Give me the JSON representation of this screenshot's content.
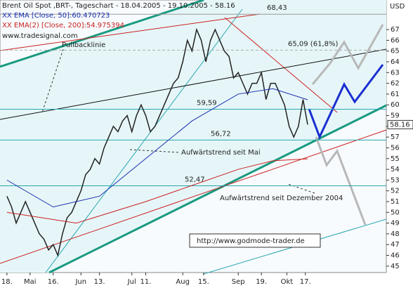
{
  "chart_data": {
    "type": "line",
    "title": "Brent Oil Spot ,BRT-, Tageschart - 18.04.2005 - 19.10.2005 - 58.16",
    "source": "www.tradesignal.com",
    "axis_unit": "USD",
    "watermark": "http://www.godmode-trader.de",
    "xlim": [
      -3,
      164
    ],
    "ylim": [
      44.4,
      69.75
    ],
    "yticks": [
      45,
      46,
      47,
      48,
      49,
      50,
      51,
      52,
      53,
      54,
      55,
      56,
      57,
      58,
      59,
      60,
      61,
      62,
      63,
      64,
      65,
      66,
      67
    ],
    "xticks": [
      {
        "value": 0,
        "label": "18."
      },
      {
        "value": 10,
        "label": "Mai"
      },
      {
        "value": 20,
        "label": "16."
      },
      {
        "value": 32,
        "label": "Jun"
      },
      {
        "value": 40,
        "label": "13."
      },
      {
        "value": 54,
        "label": "Jul"
      },
      {
        "value": 60,
        "label": "11."
      },
      {
        "value": 76,
        "label": "Aug"
      },
      {
        "value": 85,
        "label": "15."
      },
      {
        "value": 100,
        "label": "Sep"
      },
      {
        "value": 110,
        "label": "19."
      },
      {
        "value": 121,
        "label": "Okt"
      },
      {
        "value": 129,
        "label": "17."
      }
    ],
    "last": 58.16,
    "series": [
      {
        "name": "Brent Oil Spot",
        "color": "#222222",
        "x": [
          0,
          2,
          4,
          6,
          8,
          10,
          12,
          14,
          16,
          18,
          20,
          22,
          24,
          26,
          28,
          30,
          32,
          34,
          36,
          38,
          40,
          42,
          44,
          46,
          48,
          50,
          52,
          54,
          56,
          58,
          60,
          62,
          64,
          66,
          68,
          70,
          72,
          74,
          76,
          78,
          80,
          82,
          84,
          86,
          88,
          90,
          92,
          94,
          96,
          98,
          100,
          102,
          104,
          106,
          108,
          110,
          112,
          114,
          116,
          118,
          120,
          122,
          124,
          126,
          128,
          130
        ],
        "values": [
          51.5,
          50.5,
          49,
          50,
          51,
          50,
          49,
          48,
          47.5,
          46.5,
          47,
          46,
          48,
          49.5,
          50,
          51,
          52,
          53.5,
          54,
          55,
          54.5,
          56,
          57,
          58,
          57.5,
          58.5,
          59,
          57.5,
          59,
          60,
          59,
          57.5,
          58,
          59,
          60,
          61,
          62,
          62.5,
          64,
          66,
          65,
          67,
          66,
          64,
          66,
          67,
          66,
          65,
          64.5,
          62.5,
          63,
          62,
          61,
          62,
          62,
          63,
          60.5,
          62,
          62,
          61,
          60,
          58,
          57,
          58,
          60.5,
          58.16
        ]
      },
      {
        "name": "XX EMA [Close, 50]:60.470723",
        "color": "#1a2fb0",
        "x": [
          0,
          20,
          40,
          60,
          80,
          100,
          115,
          130
        ],
        "values": [
          53,
          50.5,
          51.5,
          55,
          58.5,
          61,
          61.5,
          60.47
        ]
      },
      {
        "name": "XX EMA(2) [Close, 200]:54.975394",
        "color": "#cc2222",
        "x": [
          0,
          30,
          60,
          80,
          100,
          115,
          130
        ],
        "values": [
          50,
          49,
          51,
          52.5,
          54,
          54.8,
          54.98
        ]
      }
    ],
    "levels": [
      {
        "value": 68.43,
        "label": "68,43"
      },
      {
        "value": 65.09,
        "label": "65,09 (61,8%)"
      },
      {
        "value": 59.59,
        "label": "59,59"
      },
      {
        "value": 56.72,
        "label": "56,72"
      },
      {
        "value": 52.47,
        "label": "52,47"
      }
    ],
    "annotations": [
      "Pullbacklinie",
      "Aufwärtstrend seit Mai",
      "Aufwärtstrend seit Dezember 2004"
    ]
  }
}
